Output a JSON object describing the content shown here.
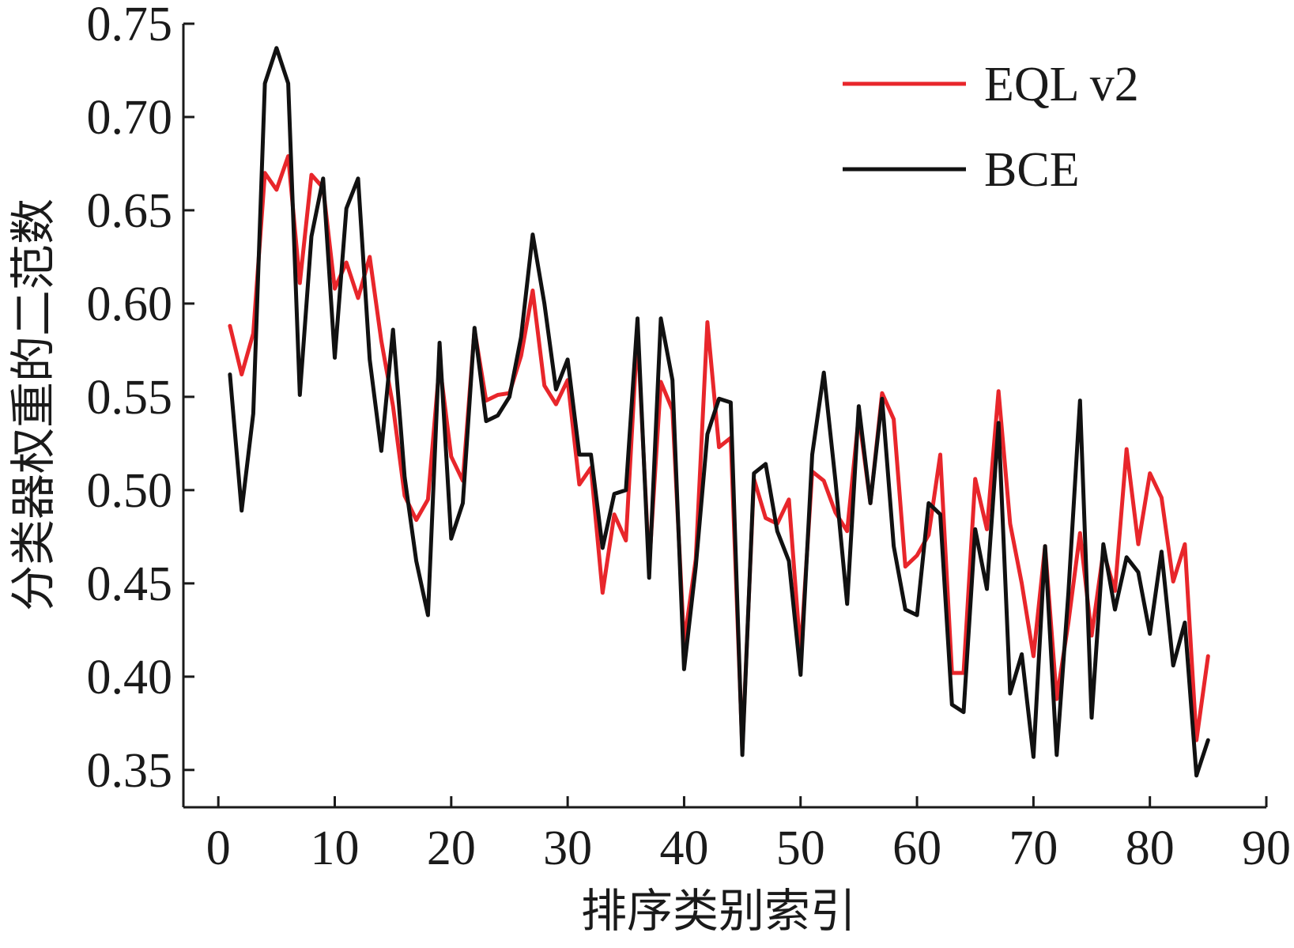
{
  "chart_data": {
    "type": "line",
    "xlabel": "排序类别索引",
    "ylabel": "分类器权重的二范数",
    "xlim": [
      -3,
      90
    ],
    "ylim": [
      0.33,
      0.75
    ],
    "xticks": [
      0,
      10,
      20,
      30,
      40,
      50,
      60,
      70,
      80,
      90
    ],
    "xtick_labels": [
      "0",
      "10",
      "20",
      "30",
      "40",
      "50",
      "60",
      "70",
      "80",
      "90"
    ],
    "yticks": [
      0.35,
      0.4,
      0.45,
      0.5,
      0.55,
      0.6,
      0.65,
      0.7,
      0.75
    ],
    "ytick_labels": [
      "0.35",
      "0.40",
      "0.45",
      "0.50",
      "0.55",
      "0.60",
      "0.65",
      "0.70",
      "0.75"
    ],
    "grid": false,
    "legend_position": "top-right",
    "series": [
      {
        "name": "EQL v2",
        "color": "#e8262b",
        "x": [
          1,
          2,
          3,
          4,
          5,
          6,
          7,
          8,
          9,
          10,
          11,
          12,
          13,
          14,
          15,
          16,
          17,
          18,
          19,
          20,
          21,
          22,
          23,
          24,
          25,
          26,
          27,
          28,
          29,
          30,
          31,
          32,
          33,
          34,
          35,
          36,
          37,
          38,
          39,
          40,
          41,
          42,
          43,
          44,
          45,
          46,
          47,
          48,
          49,
          50,
          51,
          52,
          53,
          54,
          55,
          56,
          57,
          58,
          59,
          60,
          61,
          62,
          63,
          64,
          65,
          66,
          67,
          68,
          69,
          70,
          71,
          72,
          73,
          74,
          75,
          76,
          77,
          78,
          79,
          80,
          81,
          82,
          83,
          84,
          85
        ],
        "values": [
          0.588,
          0.562,
          0.584,
          0.67,
          0.661,
          0.679,
          0.611,
          0.669,
          0.662,
          0.608,
          0.622,
          0.603,
          0.625,
          0.58,
          0.545,
          0.497,
          0.484,
          0.495,
          0.568,
          0.518,
          0.505,
          0.586,
          0.548,
          0.551,
          0.552,
          0.572,
          0.607,
          0.556,
          0.546,
          0.559,
          0.503,
          0.512,
          0.445,
          0.487,
          0.473,
          0.585,
          0.459,
          0.558,
          0.543,
          0.418,
          0.463,
          0.59,
          0.523,
          0.528,
          0.361,
          0.506,
          0.485,
          0.482,
          0.495,
          0.412,
          0.51,
          0.505,
          0.488,
          0.478,
          0.54,
          0.493,
          0.552,
          0.538,
          0.459,
          0.465,
          0.476,
          0.519,
          0.402,
          0.402,
          0.506,
          0.479,
          0.553,
          0.482,
          0.45,
          0.411,
          0.47,
          0.388,
          0.429,
          0.477,
          0.422,
          0.467,
          0.446,
          0.522,
          0.471,
          0.509,
          0.496,
          0.451,
          0.471,
          0.366,
          0.411
        ]
      },
      {
        "name": "BCE",
        "color": "#111111",
        "x": [
          1,
          2,
          3,
          4,
          5,
          6,
          7,
          8,
          9,
          10,
          11,
          12,
          13,
          14,
          15,
          16,
          17,
          18,
          19,
          20,
          21,
          22,
          23,
          24,
          25,
          26,
          27,
          28,
          29,
          30,
          31,
          32,
          33,
          34,
          35,
          36,
          37,
          38,
          39,
          40,
          41,
          42,
          43,
          44,
          45,
          46,
          47,
          48,
          49,
          50,
          51,
          52,
          53,
          54,
          55,
          56,
          57,
          58,
          59,
          60,
          61,
          62,
          63,
          64,
          65,
          66,
          67,
          68,
          69,
          70,
          71,
          72,
          73,
          74,
          75,
          76,
          77,
          78,
          79,
          80,
          81,
          82,
          83,
          84,
          85
        ],
        "values": [
          0.562,
          0.489,
          0.541,
          0.718,
          0.737,
          0.718,
          0.551,
          0.636,
          0.667,
          0.571,
          0.651,
          0.667,
          0.57,
          0.521,
          0.586,
          0.507,
          0.462,
          0.433,
          0.579,
          0.474,
          0.493,
          0.587,
          0.537,
          0.54,
          0.55,
          0.582,
          0.637,
          0.6,
          0.554,
          0.57,
          0.519,
          0.519,
          0.469,
          0.498,
          0.5,
          0.592,
          0.453,
          0.592,
          0.559,
          0.404,
          0.459,
          0.53,
          0.549,
          0.547,
          0.358,
          0.509,
          0.514,
          0.478,
          0.462,
          0.401,
          0.519,
          0.563,
          0.505,
          0.439,
          0.545,
          0.493,
          0.549,
          0.47,
          0.436,
          0.433,
          0.493,
          0.487,
          0.385,
          0.381,
          0.479,
          0.447,
          0.536,
          0.391,
          0.412,
          0.357,
          0.47,
          0.358,
          0.445,
          0.548,
          0.378,
          0.471,
          0.436,
          0.464,
          0.456,
          0.423,
          0.467,
          0.406,
          0.429,
          0.347,
          0.366
        ]
      }
    ]
  }
}
